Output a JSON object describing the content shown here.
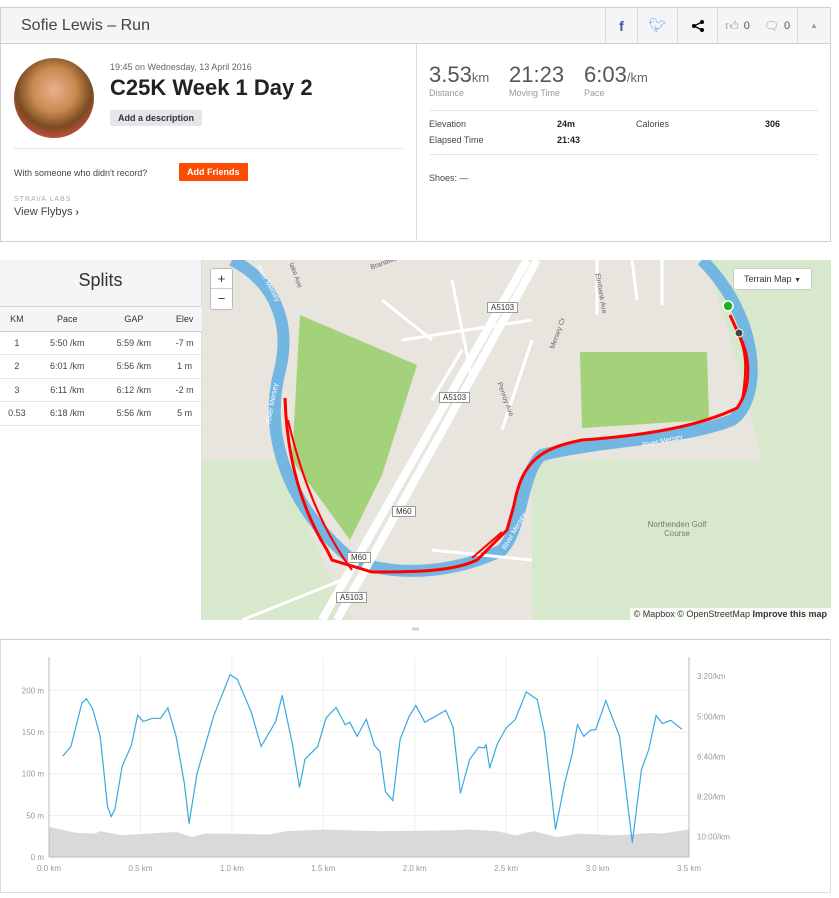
{
  "header": {
    "title": "Sofie Lewis – Run",
    "kudos_count": "0",
    "comments_count": "0"
  },
  "activity": {
    "date": "19:45 on Wednesday, 13 April 2016",
    "title": "C25K Week 1 Day 2",
    "add_description": "Add a description",
    "with_someone": "With someone who didn't record?",
    "add_friends": "Add Friends",
    "labs_label": "STRAVA LABS",
    "flybys": "View Flybys"
  },
  "stats": {
    "distance": {
      "value": "3.53",
      "unit": "km",
      "label": "Distance"
    },
    "moving_time": {
      "value": "21:23",
      "label": "Moving Time"
    },
    "pace": {
      "value": "6:03",
      "unit": "/km",
      "label": "Pace"
    },
    "elevation_label": "Elevation",
    "elevation": "24m",
    "calories_label": "Calories",
    "calories": "306",
    "elapsed_label": "Elapsed Time",
    "elapsed": "21:43",
    "shoes": "Shoes: —"
  },
  "splits": {
    "title": "Splits",
    "columns": [
      "KM",
      "Pace",
      "GAP",
      "Elev"
    ],
    "rows": [
      [
        "1",
        "5:50 /km",
        "5:59 /km",
        "-7 m"
      ],
      [
        "2",
        "6:01 /km",
        "5:56 /km",
        "1 m"
      ],
      [
        "3",
        "6:11 /km",
        "6:12 /km",
        "-2 m"
      ],
      [
        "0.53",
        "6:18 /km",
        "5:56 /km",
        "5 m"
      ]
    ]
  },
  "map": {
    "terrain": "Terrain Map",
    "zoom_in": "+",
    "zoom_out": "−",
    "attribution": "© Mapbox © OpenStreetMap",
    "improve": "Improve this map",
    "labels": {
      "a5103a": "A5103",
      "a5103b": "A5103",
      "a5103c": "A5103",
      "m60a": "M60",
      "m60b": "M60",
      "river1": "River Mersey",
      "river2": "River Mersey",
      "river3": "River Mersey",
      "river4": "River Mersey",
      "golf": "Northenden Golf Course",
      "penroy": "Penroy Ave",
      "mersey_cr": "Mersey Cr",
      "elmbank": "Elmbank Ave",
      "lake": "lake Ave",
      "brandwood": "Brandwo"
    },
    "colors": {
      "route": "#ff0000",
      "river": "#74b6e2",
      "park": "#a3d27a"
    }
  },
  "chart_data": {
    "type": "line",
    "xlabel": "km",
    "x_ticks": [
      "0.0 km",
      "0.5 km",
      "1.0 km",
      "1.5 km",
      "2.0 km",
      "2.5 km",
      "3.0 km",
      "3.5 km"
    ],
    "y_left_ticks": [
      "0 m",
      "50 m",
      "100 m",
      "150 m",
      "200 m"
    ],
    "y_right_ticks": [
      "3:20/km",
      "5:00/km",
      "6:40/km",
      "8:20/km",
      "10:00/km"
    ],
    "xlim": [
      0,
      3.5
    ],
    "elev_lim": [
      0,
      240
    ],
    "pace_lim_s": [
      152,
      651
    ],
    "elevation": {
      "name": "Elevation (m)",
      "color": "#d9d9d9",
      "x": [
        0,
        0.15,
        0.25,
        0.28,
        0.4,
        0.6,
        0.7,
        0.78,
        0.85,
        1.0,
        1.2,
        1.3,
        1.5,
        1.8,
        2.2,
        2.3,
        2.45,
        2.55,
        2.65,
        2.78,
        2.9,
        3.1,
        3.3,
        3.35,
        3.5
      ],
      "y": [
        36,
        29,
        28,
        31,
        26,
        29,
        30,
        24,
        28,
        28,
        27,
        31,
        33,
        31,
        32,
        33,
        31,
        26,
        31,
        24,
        28,
        26,
        29,
        28,
        33
      ]
    },
    "pace": {
      "name": "Pace (s/km)",
      "color": "#3aa8e0",
      "x": [
        0.076,
        0.12,
        0.18,
        0.205,
        0.24,
        0.28,
        0.32,
        0.34,
        0.36,
        0.4,
        0.45,
        0.485,
        0.515,
        0.565,
        0.61,
        0.65,
        0.695,
        0.74,
        0.766,
        0.81,
        0.9,
        0.99,
        1.03,
        1.105,
        1.16,
        1.24,
        1.275,
        1.33,
        1.37,
        1.4,
        1.47,
        1.515,
        1.57,
        1.62,
        1.645,
        1.685,
        1.735,
        1.78,
        1.81,
        1.84,
        1.88,
        1.92,
        1.97,
        2.006,
        2.055,
        2.17,
        2.21,
        2.25,
        2.3,
        2.35,
        2.38,
        2.39,
        2.41,
        2.45,
        2.5,
        2.55,
        2.61,
        2.67,
        2.71,
        2.77,
        2.82,
        2.86,
        2.89,
        2.925,
        2.96,
        2.99,
        3.045,
        3.12,
        3.19,
        3.24,
        3.28,
        3.32,
        3.355,
        3.4,
        3.46
      ],
      "y": [
        399,
        375,
        267,
        256,
        283,
        350,
        525,
        550,
        533,
        425,
        373,
        297,
        313,
        305,
        305,
        279,
        350,
        467,
        567,
        442,
        300,
        196,
        208,
        288,
        375,
        313,
        248,
        367,
        477,
        407,
        375,
        304,
        278,
        321,
        315,
        350,
        307,
        373,
        388,
        488,
        510,
        358,
        300,
        273,
        315,
        285,
        327,
        492,
        408,
        377,
        379,
        371,
        429,
        371,
        329,
        308,
        239,
        258,
        342,
        582,
        467,
        396,
        321,
        350,
        335,
        333,
        261,
        350,
        615,
        433,
        383,
        298,
        318,
        310,
        332
      ]
    }
  }
}
